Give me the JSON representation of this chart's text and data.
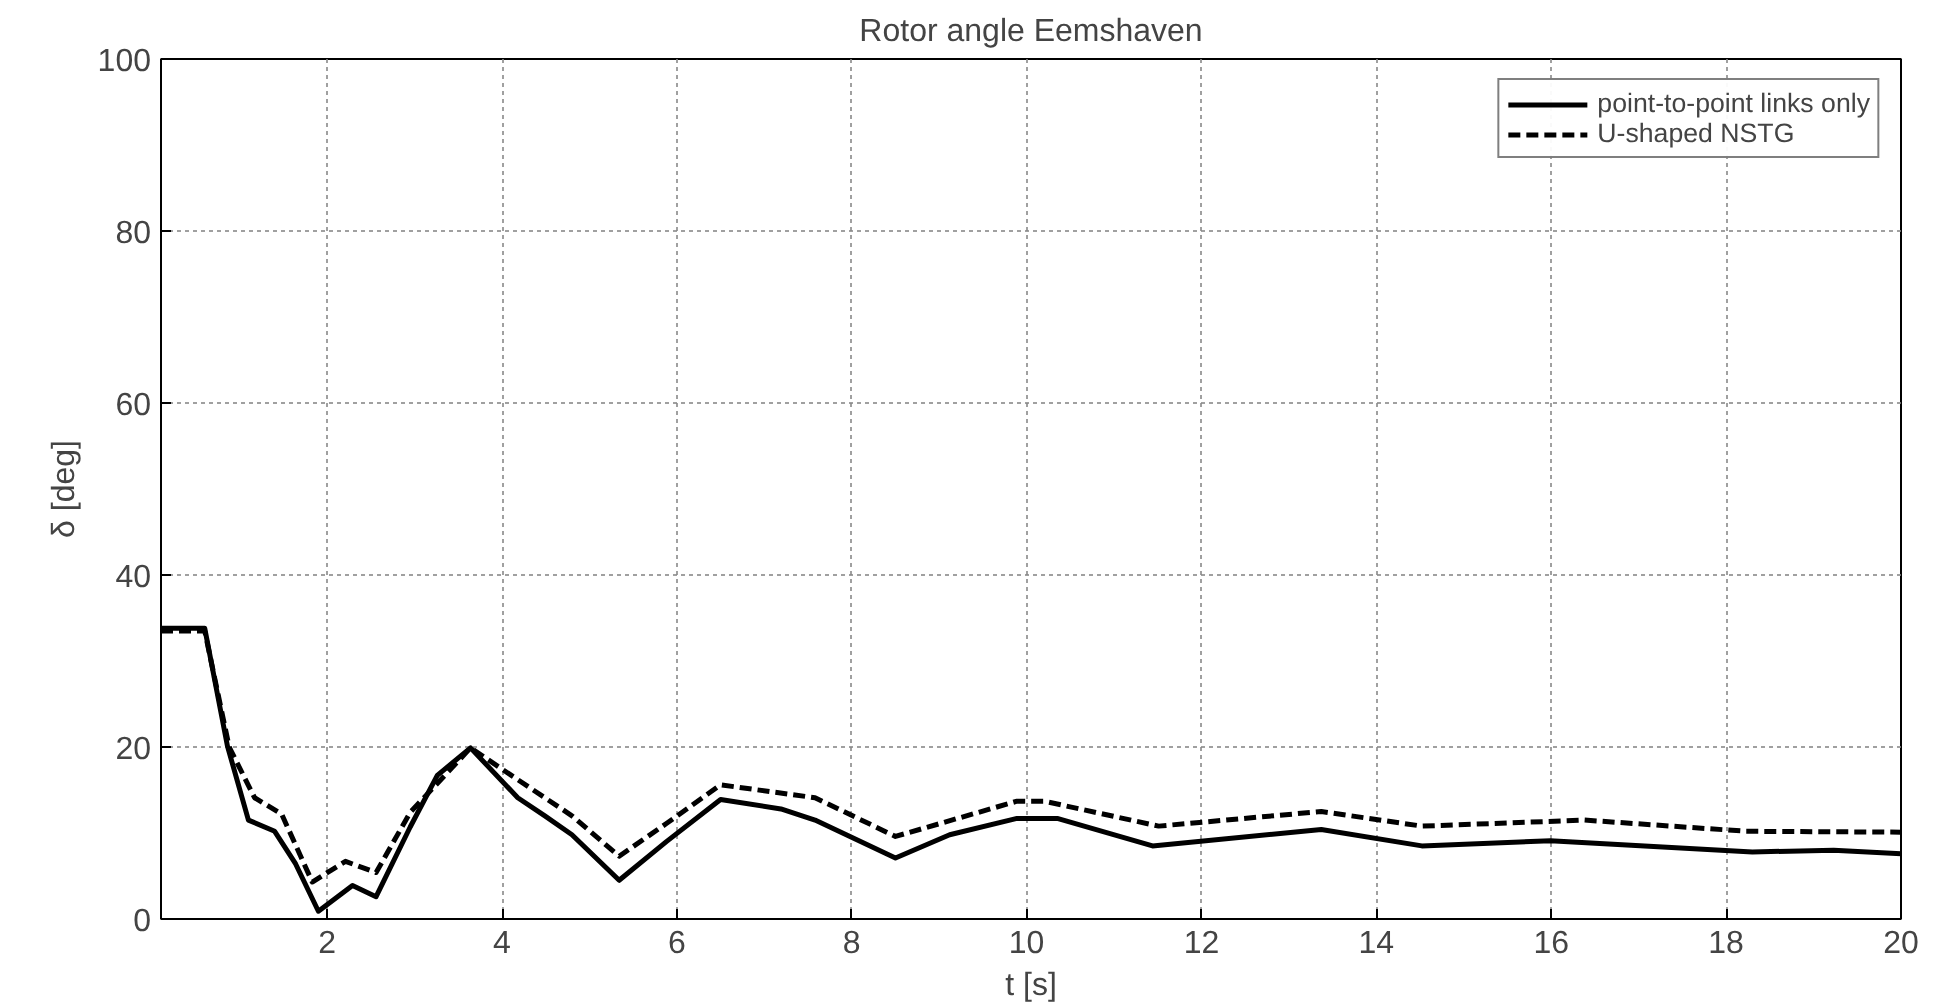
{
  "chart_data": {
    "type": "line",
    "title": "Rotor angle Eemshaven",
    "xlabel": "t [s]",
    "ylabel": "δ [deg]",
    "xlim": [
      0.1,
      20
    ],
    "ylim": [
      0,
      100
    ],
    "xticks": [
      2,
      4,
      6,
      8,
      10,
      12,
      14,
      16,
      18,
      20
    ],
    "yticks": [
      0,
      20,
      40,
      60,
      80,
      100
    ],
    "grid": true,
    "legend": "top right",
    "series": [
      {
        "name": "point-to-point links only",
        "color": "#000000",
        "line_style": "solid",
        "x": [
          0.1,
          0.6,
          0.86,
          1.1,
          1.4,
          1.64,
          1.9,
          2.29,
          2.56,
          2.95,
          3.26,
          3.64,
          4.18,
          4.49,
          4.8,
          5.34,
          5.88,
          6.5,
          7.19,
          7.58,
          8.5,
          9.12,
          9.89,
          10.35,
          11.44,
          13.37,
          14.52,
          15.99,
          18.3,
          19.23,
          20
        ],
        "values": [
          33.8,
          33.8,
          20.1,
          11.5,
          10.2,
          6.4,
          0.9,
          3.9,
          2.6,
          10.7,
          16.7,
          19.9,
          14.1,
          12,
          9.8,
          4.5,
          9,
          13.9,
          12.8,
          11.5,
          7.1,
          9.8,
          11.7,
          11.7,
          8.5,
          10.4,
          8.5,
          9.1,
          7.8,
          8,
          7.6
        ]
      },
      {
        "name": "U-shaped NSTG",
        "color": "#000000",
        "line_style": "dashed",
        "x": [
          0.1,
          0.6,
          0.88,
          1.17,
          1.48,
          1.83,
          2.21,
          2.56,
          2.95,
          3.64,
          4.18,
          4.8,
          5.34,
          5.88,
          6.5,
          7.58,
          8.5,
          9.89,
          10.2,
          11.51,
          13.37,
          14.52,
          16.38,
          18.23,
          20
        ],
        "values": [
          33.5,
          33.5,
          20,
          14.1,
          12.2,
          4.3,
          6.7,
          5.4,
          12.4,
          19.9,
          16.2,
          12,
          7.3,
          11.1,
          15.6,
          14.1,
          9.6,
          13.7,
          13.7,
          10.8,
          12.5,
          10.8,
          11.5,
          10.2,
          10.1
        ]
      }
    ]
  }
}
